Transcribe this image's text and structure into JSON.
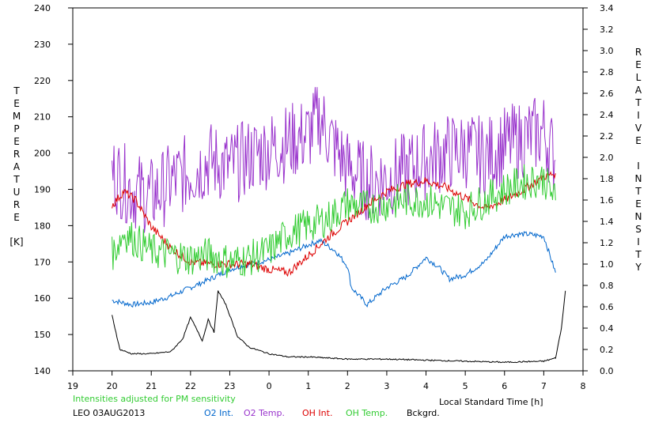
{
  "chart_data": {
    "type": "line",
    "x_label": "Local Standard Time [h]",
    "x_ticks": [
      "19",
      "20",
      "21",
      "22",
      "23",
      "0",
      "1",
      "2",
      "3",
      "4",
      "5",
      "6",
      "7",
      "8"
    ],
    "xlim": [
      19,
      32
    ],
    "left_axis": {
      "label_letters": [
        "T",
        "E",
        "M",
        "P",
        "E",
        "R",
        "A",
        "T",
        "U",
        "R",
        "E",
        "[K]"
      ],
      "ylim": [
        140,
        240
      ],
      "ticks": [
        "140",
        "150",
        "160",
        "170",
        "180",
        "190",
        "200",
        "210",
        "220",
        "230",
        "240"
      ]
    },
    "right_axis": {
      "label_letters": [
        "R",
        "E",
        "L",
        "A",
        "T",
        "I",
        "V",
        "E",
        "I",
        "N",
        "T",
        "E",
        "N",
        "S",
        "I",
        "T",
        "Y"
      ],
      "ylim": [
        0,
        3.4
      ],
      "ticks": [
        "0.0",
        "0.2",
        "0.4",
        "0.6",
        "0.8",
        "1.0",
        "1.2",
        "1.4",
        "1.6",
        "1.8",
        "2.0",
        "2.2",
        "2.4",
        "2.6",
        "2.8",
        "3.0",
        "3.2",
        "3.4"
      ]
    },
    "note": "Intensities adjusted for PM sensitivity",
    "station_date": "LEO 03AUG2013",
    "series": [
      {
        "name": "O2 Int.",
        "axis": "right",
        "color": "#0066cc",
        "x": [
          20.0,
          20.5,
          21.0,
          21.5,
          22.0,
          22.5,
          23.0,
          23.5,
          24.0,
          24.5,
          25.0,
          25.3,
          25.7,
          26.0,
          26.1,
          26.5,
          27.0,
          27.5,
          28.0,
          28.3,
          28.6,
          29.0,
          29.5,
          30.0,
          30.3,
          30.6,
          31.0,
          31.3
        ],
        "y": [
          0.66,
          0.62,
          0.64,
          0.7,
          0.78,
          0.86,
          0.95,
          1.0,
          1.04,
          1.1,
          1.18,
          1.22,
          1.12,
          0.98,
          0.78,
          0.62,
          0.78,
          0.88,
          1.06,
          0.98,
          0.86,
          0.9,
          1.02,
          1.26,
          1.28,
          1.28,
          1.26,
          0.92
        ]
      },
      {
        "name": "O2 Temp.",
        "axis": "left",
        "color": "#9933cc",
        "x": [
          20.0,
          20.5,
          21.0,
          21.5,
          22.0,
          22.5,
          23.0,
          23.5,
          24.0,
          24.5,
          25.0,
          25.3,
          25.6,
          26.0,
          26.5,
          27.0,
          27.5,
          28.0,
          28.5,
          29.0,
          29.5,
          30.0,
          30.5,
          31.0,
          31.3
        ],
        "y": [
          195,
          190,
          188,
          192,
          195,
          198,
          196,
          199,
          201,
          203,
          205,
          210,
          203,
          196,
          192,
          193,
          195,
          198,
          200,
          201,
          199,
          202,
          204,
          206,
          198
        ]
      },
      {
        "name": "OH Int.",
        "axis": "right",
        "color": "#dd0000",
        "x": [
          20.0,
          20.3,
          20.6,
          21.0,
          21.5,
          22.0,
          22.5,
          23.0,
          23.5,
          24.0,
          24.5,
          25.0,
          25.5,
          26.0,
          26.5,
          27.0,
          27.5,
          28.0,
          28.5,
          29.0,
          29.5,
          30.0,
          30.5,
          31.0,
          31.3
        ],
        "y": [
          1.55,
          1.68,
          1.6,
          1.35,
          1.15,
          1.02,
          1.0,
          1.0,
          1.0,
          0.95,
          0.92,
          1.08,
          1.25,
          1.4,
          1.55,
          1.68,
          1.75,
          1.78,
          1.72,
          1.62,
          1.52,
          1.6,
          1.7,
          1.82,
          1.85
        ]
      },
      {
        "name": "OH Temp.",
        "axis": "left",
        "color": "#33cc33",
        "x": [
          20.0,
          20.3,
          20.6,
          21.0,
          21.5,
          22.0,
          22.5,
          23.0,
          23.5,
          24.0,
          24.5,
          25.0,
          25.5,
          26.0,
          26.5,
          27.0,
          27.5,
          28.0,
          28.5,
          29.0,
          29.5,
          30.0,
          30.5,
          31.0,
          31.3
        ],
        "y": [
          172,
          178,
          176,
          173,
          172,
          171,
          172,
          170,
          171,
          173,
          178,
          180,
          182,
          186,
          185,
          186,
          187,
          187,
          185,
          184,
          187,
          190,
          192,
          193,
          187
        ]
      },
      {
        "name": "Bckgrd.",
        "axis": "right",
        "color": "#000000",
        "x": [
          20.0,
          20.2,
          20.5,
          21.0,
          21.5,
          21.8,
          22.0,
          22.2,
          22.3,
          22.45,
          22.6,
          22.7,
          22.9,
          23.2,
          23.5,
          24.0,
          24.5,
          25.0,
          25.5,
          26.0,
          27.0,
          28.0,
          29.0,
          30.0,
          31.0,
          31.3,
          31.45,
          31.55
        ],
        "y": [
          0.52,
          0.2,
          0.16,
          0.16,
          0.18,
          0.3,
          0.5,
          0.36,
          0.28,
          0.48,
          0.36,
          0.75,
          0.62,
          0.32,
          0.22,
          0.16,
          0.13,
          0.13,
          0.12,
          0.11,
          0.11,
          0.1,
          0.09,
          0.08,
          0.09,
          0.12,
          0.4,
          0.75
        ]
      }
    ]
  }
}
